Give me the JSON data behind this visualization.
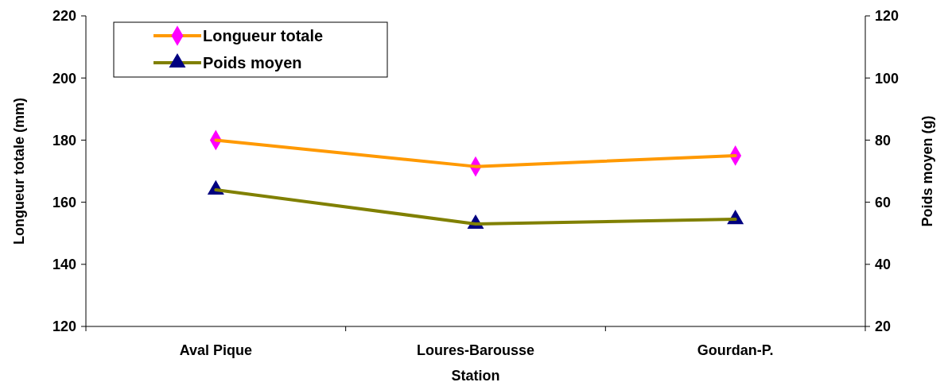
{
  "chart_data": {
    "type": "line",
    "xlabel": "Station",
    "ylabel": "Longueur totale (mm)",
    "y2label": "Poids moyen (g)",
    "categories": [
      "Aval Pique",
      "Loures-Barousse",
      "Gourdan-P."
    ],
    "series": [
      {
        "name": "Longueur totale",
        "color": "#ff9900",
        "marker": "diamond",
        "colors": [
          "#ff00ff",
          "#ff00ff",
          "#ff00ff"
        ],
        "values": [
          180,
          171.5,
          175
        ]
      },
      {
        "name": "Poids moyen",
        "color": "#808000",
        "marker": "triangle",
        "colors": [
          "#000080",
          "#000080",
          "#000080"
        ],
        "axis": "y2",
        "values": [
          64,
          53,
          54.5
        ]
      }
    ],
    "ylim": [
      120,
      220
    ],
    "yticks": [
      120,
      140,
      160,
      180,
      200,
      220
    ],
    "y2lim": [
      20,
      120
    ],
    "y2ticks": [
      20,
      40,
      60,
      80,
      100,
      120
    ],
    "grid": false,
    "legend": "top left"
  }
}
